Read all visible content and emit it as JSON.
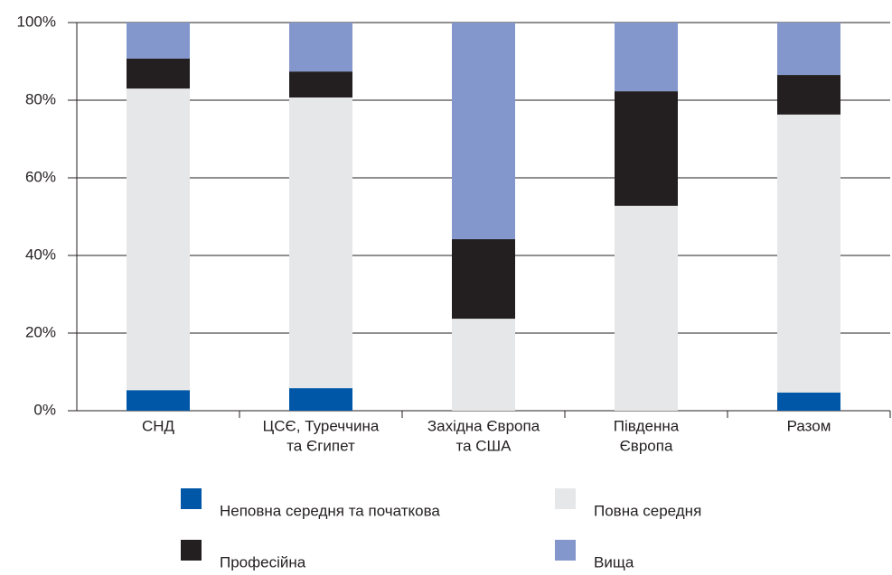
{
  "chart_data": {
    "type": "stacked_bar",
    "categories": [
      [
        "СНД"
      ],
      [
        "ЦСЄ, Туреччина",
        "та Єгипет"
      ],
      [
        "Західна Європа",
        "та США"
      ],
      [
        "Південна",
        "Європа"
      ],
      [
        "Разом"
      ]
    ],
    "series": [
      {
        "name": "Неповна середня та початкова",
        "color": "#0057a8",
        "values": [
          5.3,
          5.8,
          0,
          0,
          4.7
        ]
      },
      {
        "name": "Повна середня",
        "color": "#e6e7e8",
        "values": [
          77.7,
          74.9,
          23.7,
          52.8,
          71.6
        ]
      },
      {
        "name": "Професійна",
        "color": "#231f20",
        "values": [
          7.7,
          6.7,
          20.5,
          29.5,
          10.2
        ]
      },
      {
        "name": "Вища",
        "color": "#8497cc",
        "values": [
          9.3,
          12.6,
          55.8,
          17.7,
          13.5
        ]
      }
    ],
    "ylim": [
      0,
      100
    ],
    "yticks": [
      {
        "value": 0,
        "label": "0%"
      },
      {
        "value": 20,
        "label": "20%"
      },
      {
        "value": 40,
        "label": "40%"
      },
      {
        "value": 60,
        "label": "60%"
      },
      {
        "value": 80,
        "label": "80%"
      },
      {
        "value": 100,
        "label": "100%"
      }
    ],
    "grid": true
  }
}
